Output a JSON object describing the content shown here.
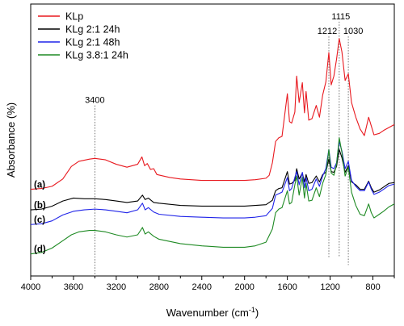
{
  "chart_data": {
    "type": "line",
    "xlabel": "Wavenumber (cm",
    "xlabel_sup": "-1",
    "xlabel_end": ")",
    "ylabel": "Absorbance (%)",
    "xlim": [
      4000,
      600
    ],
    "x_reversed": true,
    "x_ticks": [
      4000,
      3600,
      3200,
      2800,
      2400,
      2000,
      1600,
      1200,
      800
    ],
    "y_ticks_shown": false,
    "legend_position": "top-left",
    "series": [
      {
        "name": "KLp",
        "label": "(a)",
        "color": "#e8191f",
        "points": [
          [
            4000,
            7.8
          ],
          [
            3900,
            7.9
          ],
          [
            3800,
            8.2
          ],
          [
            3700,
            9.2
          ],
          [
            3620,
            10.9
          ],
          [
            3550,
            11.6
          ],
          [
            3450,
            11.9
          ],
          [
            3400,
            12.0
          ],
          [
            3300,
            11.8
          ],
          [
            3200,
            11.2
          ],
          [
            3100,
            10.8
          ],
          [
            3000,
            11.2
          ],
          [
            2960,
            12.2
          ],
          [
            2935,
            11.0
          ],
          [
            2910,
            11.3
          ],
          [
            2880,
            10.5
          ],
          [
            2850,
            10.6
          ],
          [
            2820,
            9.8
          ],
          [
            2700,
            9.4
          ],
          [
            2600,
            9.2
          ],
          [
            2400,
            9.0
          ],
          [
            2200,
            9.0
          ],
          [
            2000,
            9.0
          ],
          [
            1900,
            9.1
          ],
          [
            1800,
            9.3
          ],
          [
            1770,
            9.7
          ],
          [
            1740,
            11.4
          ],
          [
            1710,
            14.3
          ],
          [
            1680,
            14.8
          ],
          [
            1650,
            15.0
          ],
          [
            1600,
            20.8
          ],
          [
            1580,
            17.0
          ],
          [
            1560,
            16.8
          ],
          [
            1530,
            18.3
          ],
          [
            1513,
            23.2
          ],
          [
            1490,
            19.6
          ],
          [
            1460,
            22.3
          ],
          [
            1440,
            18.2
          ],
          [
            1425,
            21.1
          ],
          [
            1400,
            17.2
          ],
          [
            1370,
            17.4
          ],
          [
            1330,
            19.2
          ],
          [
            1300,
            17.6
          ],
          [
            1270,
            20.6
          ],
          [
            1240,
            22.4
          ],
          [
            1212,
            26.4
          ],
          [
            1190,
            22.0
          ],
          [
            1165,
            23.2
          ],
          [
            1140,
            25.5
          ],
          [
            1115,
            28.3
          ],
          [
            1090,
            26.5
          ],
          [
            1060,
            22.6
          ],
          [
            1030,
            23.5
          ],
          [
            1000,
            19.6
          ],
          [
            960,
            17.6
          ],
          [
            920,
            16.0
          ],
          [
            880,
            15.1
          ],
          [
            840,
            17.6
          ],
          [
            815,
            16.4
          ],
          [
            790,
            15.2
          ],
          [
            740,
            15.4
          ],
          [
            700,
            15.8
          ],
          [
            650,
            16.2
          ],
          [
            600,
            16.6
          ]
        ]
      },
      {
        "name": "KLg 2:1 24h",
        "label": "(b)",
        "color": "#000000",
        "points": [
          [
            4000,
            5.0
          ],
          [
            3900,
            5.1
          ],
          [
            3800,
            5.5
          ],
          [
            3700,
            6.2
          ],
          [
            3600,
            6.6
          ],
          [
            3500,
            6.5
          ],
          [
            3400,
            6.5
          ],
          [
            3300,
            6.4
          ],
          [
            3200,
            6.2
          ],
          [
            3100,
            6.0
          ],
          [
            3000,
            6.2
          ],
          [
            2955,
            7.0
          ],
          [
            2930,
            6.4
          ],
          [
            2900,
            6.6
          ],
          [
            2850,
            6.0
          ],
          [
            2800,
            5.9
          ],
          [
            2600,
            5.6
          ],
          [
            2400,
            5.5
          ],
          [
            2200,
            5.5
          ],
          [
            2000,
            5.5
          ],
          [
            1900,
            5.6
          ],
          [
            1800,
            5.7
          ],
          [
            1740,
            6.3
          ],
          [
            1710,
            7.6
          ],
          [
            1680,
            7.9
          ],
          [
            1650,
            8.0
          ],
          [
            1600,
            10.2
          ],
          [
            1580,
            8.5
          ],
          [
            1560,
            8.6
          ],
          [
            1530,
            9.0
          ],
          [
            1513,
            10.6
          ],
          [
            1490,
            9.2
          ],
          [
            1460,
            10.0
          ],
          [
            1440,
            8.8
          ],
          [
            1425,
            9.8
          ],
          [
            1400,
            8.6
          ],
          [
            1370,
            8.7
          ],
          [
            1330,
            9.6
          ],
          [
            1300,
            8.8
          ],
          [
            1270,
            9.8
          ],
          [
            1240,
            10.1
          ],
          [
            1212,
            11.9
          ],
          [
            1190,
            10.2
          ],
          [
            1165,
            10.1
          ],
          [
            1140,
            10.9
          ],
          [
            1115,
            13.2
          ],
          [
            1090,
            12.1
          ],
          [
            1060,
            10.1
          ],
          [
            1030,
            11.0
          ],
          [
            1000,
            8.8
          ],
          [
            960,
            8.4
          ],
          [
            920,
            7.8
          ],
          [
            880,
            7.8
          ],
          [
            840,
            8.9
          ],
          [
            815,
            8.0
          ],
          [
            790,
            7.4
          ],
          [
            740,
            7.7
          ],
          [
            700,
            8.1
          ],
          [
            650,
            8.6
          ],
          [
            600,
            8.7
          ]
        ]
      },
      {
        "name": "KLg 2:1 48h",
        "label": "(c)",
        "color": "#1f23e8",
        "points": [
          [
            4000,
            3.0
          ],
          [
            3900,
            3.1
          ],
          [
            3800,
            3.5
          ],
          [
            3700,
            4.3
          ],
          [
            3600,
            4.8
          ],
          [
            3500,
            5.0
          ],
          [
            3400,
            5.1
          ],
          [
            3300,
            5.0
          ],
          [
            3200,
            4.8
          ],
          [
            3100,
            4.6
          ],
          [
            3000,
            5.0
          ],
          [
            2955,
            5.9
          ],
          [
            2930,
            5.0
          ],
          [
            2900,
            5.3
          ],
          [
            2850,
            4.7
          ],
          [
            2800,
            4.4
          ],
          [
            2600,
            4.1
          ],
          [
            2400,
            4.0
          ],
          [
            2200,
            3.9
          ],
          [
            2000,
            3.9
          ],
          [
            1900,
            4.0
          ],
          [
            1800,
            4.2
          ],
          [
            1740,
            5.2
          ],
          [
            1710,
            7.0
          ],
          [
            1680,
            7.2
          ],
          [
            1650,
            7.4
          ],
          [
            1600,
            9.4
          ],
          [
            1580,
            7.6
          ],
          [
            1560,
            7.9
          ],
          [
            1530,
            9.4
          ],
          [
            1513,
            10.2
          ],
          [
            1490,
            8.4
          ],
          [
            1460,
            10.1
          ],
          [
            1440,
            8.0
          ],
          [
            1425,
            9.4
          ],
          [
            1400,
            7.6
          ],
          [
            1370,
            7.8
          ],
          [
            1330,
            9.2
          ],
          [
            1300,
            8.2
          ],
          [
            1270,
            9.6
          ],
          [
            1240,
            10.6
          ],
          [
            1212,
            13.2
          ],
          [
            1190,
            10.8
          ],
          [
            1165,
            10.6
          ],
          [
            1140,
            11.4
          ],
          [
            1115,
            14.3
          ],
          [
            1090,
            13.0
          ],
          [
            1060,
            10.6
          ],
          [
            1030,
            11.6
          ],
          [
            1000,
            9.0
          ],
          [
            960,
            8.2
          ],
          [
            920,
            7.6
          ],
          [
            880,
            7.6
          ],
          [
            840,
            8.8
          ],
          [
            815,
            7.8
          ],
          [
            790,
            7.1
          ],
          [
            740,
            7.4
          ],
          [
            700,
            7.8
          ],
          [
            650,
            8.3
          ],
          [
            600,
            8.5
          ]
        ]
      },
      {
        "name": "KLg 3.8:1 24h",
        "label": "(d)",
        "color": "#1e8a23",
        "points": [
          [
            4000,
            -1.0
          ],
          [
            3900,
            -0.8
          ],
          [
            3800,
            -0.2
          ],
          [
            3700,
            0.8
          ],
          [
            3620,
            1.6
          ],
          [
            3550,
            2.0
          ],
          [
            3450,
            2.2
          ],
          [
            3400,
            2.2
          ],
          [
            3300,
            2.0
          ],
          [
            3200,
            1.6
          ],
          [
            3100,
            1.3
          ],
          [
            3000,
            1.6
          ],
          [
            2955,
            2.6
          ],
          [
            2930,
            1.7
          ],
          [
            2900,
            2.0
          ],
          [
            2850,
            1.4
          ],
          [
            2800,
            1.0
          ],
          [
            2600,
            0.4
          ],
          [
            2400,
            0.1
          ],
          [
            2200,
            -0.1
          ],
          [
            2000,
            -0.1
          ],
          [
            1900,
            0.1
          ],
          [
            1800,
            0.6
          ],
          [
            1740,
            2.4
          ],
          [
            1710,
            4.6
          ],
          [
            1680,
            5.1
          ],
          [
            1650,
            5.3
          ],
          [
            1600,
            7.6
          ],
          [
            1580,
            5.8
          ],
          [
            1560,
            6.0
          ],
          [
            1530,
            8.4
          ],
          [
            1513,
            9.6
          ],
          [
            1490,
            7.0
          ],
          [
            1460,
            9.4
          ],
          [
            1440,
            6.6
          ],
          [
            1425,
            8.6
          ],
          [
            1400,
            6.2
          ],
          [
            1370,
            6.3
          ],
          [
            1330,
            8.0
          ],
          [
            1300,
            6.8
          ],
          [
            1270,
            8.6
          ],
          [
            1240,
            9.8
          ],
          [
            1212,
            13.2
          ],
          [
            1190,
            10.0
          ],
          [
            1165,
            9.7
          ],
          [
            1140,
            11.2
          ],
          [
            1115,
            14.8
          ],
          [
            1090,
            12.8
          ],
          [
            1060,
            9.6
          ],
          [
            1030,
            10.8
          ],
          [
            1000,
            7.4
          ],
          [
            960,
            5.6
          ],
          [
            920,
            4.4
          ],
          [
            880,
            4.2
          ],
          [
            840,
            5.8
          ],
          [
            815,
            4.6
          ],
          [
            790,
            3.9
          ],
          [
            740,
            4.4
          ],
          [
            700,
            4.8
          ],
          [
            650,
            5.4
          ],
          [
            600,
            5.8
          ]
        ]
      }
    ],
    "ylim": [
      -4,
      33
    ],
    "annotations": [
      {
        "label": "3400",
        "x": 3400,
        "top": 19.2,
        "bottom": -4
      },
      {
        "label": "1212",
        "x": 1212,
        "top": 28.6,
        "bottom": -1.5
      },
      {
        "label": "1115",
        "x": 1115,
        "top": 30.6,
        "bottom": -1.5
      },
      {
        "label": "1030",
        "x": 1030,
        "top": 28.6,
        "bottom": -2.5
      }
    ]
  }
}
